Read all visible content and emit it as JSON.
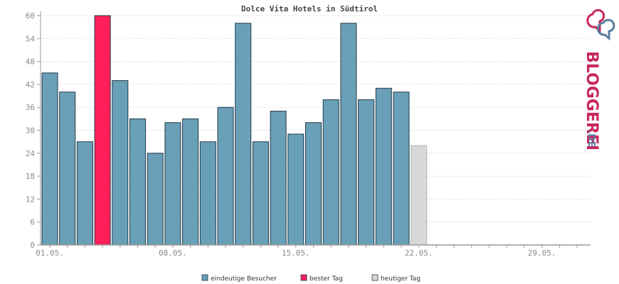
{
  "chart_data": {
    "type": "bar",
    "title": "Dolce Vita Hotels in Südtirol",
    "xlabel": "",
    "ylabel": "",
    "ylim": [
      0,
      60
    ],
    "yticks": [
      0,
      6,
      12,
      18,
      24,
      30,
      36,
      42,
      48,
      54,
      60
    ],
    "x_tick_labels": [
      "01.05.",
      "08.05.",
      "15.05.",
      "22.05.",
      "29.05."
    ],
    "x_tick_days": [
      1,
      8,
      15,
      22,
      29
    ],
    "days_in_month": 31,
    "grid": true,
    "legend_position": "bottom",
    "series": [
      {
        "name": "eindeutige Besucher",
        "color": "#6a9fb8",
        "days": [
          1,
          2,
          3,
          5,
          6,
          7,
          8,
          9,
          10,
          11,
          12,
          13,
          14,
          15,
          16,
          17,
          18,
          19,
          20,
          21
        ],
        "values": [
          45,
          40,
          27,
          43,
          33,
          24,
          32,
          33,
          27,
          36,
          58,
          27,
          35,
          29,
          32,
          38,
          58,
          38,
          41,
          40
        ]
      },
      {
        "name": "bester Tag",
        "color": "#ff1f5a",
        "days": [
          4
        ],
        "values": [
          60
        ]
      },
      {
        "name": "heutiger Tag",
        "color": "#d8d8d8",
        "days": [
          22
        ],
        "values": [
          26
        ]
      }
    ]
  },
  "brand": {
    "wordmark": "BLOGGEREI",
    "suffix": ".DE",
    "color_main": "#c8285a",
    "color_alt": "#5b7da0"
  }
}
